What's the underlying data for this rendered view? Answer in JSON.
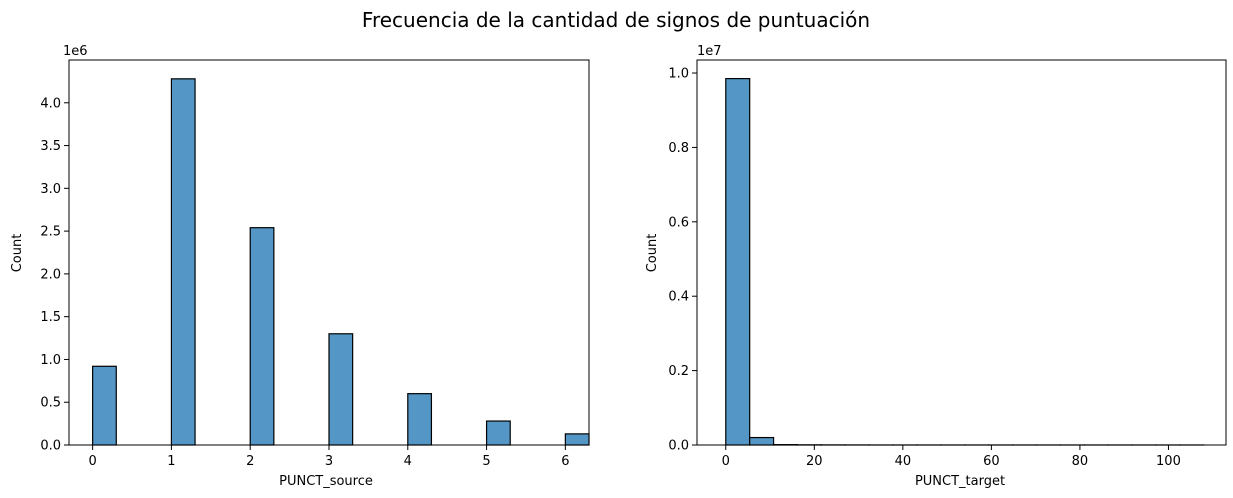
{
  "figure": {
    "title": "Frecuencia de la cantidad de signos de puntuación"
  },
  "chart_data": [
    {
      "type": "bar",
      "title": "",
      "xlabel": "PUNCT_source",
      "ylabel": "Count",
      "offset_text": "1e6",
      "color": "#5497c6",
      "xlim": [
        -0.3,
        6.3
      ],
      "ylim": [
        0,
        4.5
      ],
      "x_ticks": [
        0,
        1,
        2,
        3,
        4,
        5,
        6
      ],
      "x_tick_labels": [
        "0",
        "1",
        "2",
        "3",
        "4",
        "5",
        "6"
      ],
      "y_ticks": [
        0,
        0.5,
        1.0,
        1.5,
        2.0,
        2.5,
        3.0,
        3.5,
        4.0
      ],
      "y_tick_labels": [
        "0.0",
        "0.5",
        "1.0",
        "1.5",
        "2.0",
        "2.5",
        "3.0",
        "3.5",
        "4.0"
      ],
      "bin_width": 0.3,
      "bars": [
        {
          "x": 0,
          "value": 0.92
        },
        {
          "x": 1,
          "value": 4.28
        },
        {
          "x": 2,
          "value": 2.54
        },
        {
          "x": 3,
          "value": 1.3
        },
        {
          "x": 4,
          "value": 0.6
        },
        {
          "x": 5,
          "value": 0.28
        },
        {
          "x": 6,
          "value": 0.13
        }
      ],
      "grid": false
    },
    {
      "type": "bar",
      "title": "",
      "xlabel": "PUNCT_target",
      "ylabel": "Count",
      "offset_text": "1e7",
      "color": "#5497c6",
      "xlim": [
        -6.5,
        113
      ],
      "ylim": [
        0,
        1.035
      ],
      "x_ticks": [
        0,
        20,
        40,
        60,
        80,
        100
      ],
      "x_tick_labels": [
        "0",
        "20",
        "40",
        "60",
        "80",
        "100"
      ],
      "y_ticks": [
        0,
        0.2,
        0.4,
        0.6,
        0.8,
        1.0
      ],
      "y_tick_labels": [
        "0.0",
        "0.2",
        "0.4",
        "0.6",
        "0.8",
        "1.0"
      ],
      "bin_width": 5.4,
      "bars": [
        {
          "x": 0,
          "value": 0.985
        },
        {
          "x": 5.4,
          "value": 0.02
        },
        {
          "x": 10.8,
          "value": 0.001
        },
        {
          "x": 16.2,
          "value": 0.0005
        },
        {
          "x": 21.6,
          "value": 0.0003
        },
        {
          "x": 27.0,
          "value": 0.0002
        },
        {
          "x": 32.4,
          "value": 0.0001
        },
        {
          "x": 37.8,
          "value": 0.0001
        },
        {
          "x": 43.2,
          "value": 0.0001
        },
        {
          "x": 48.6,
          "value": 0.0001
        },
        {
          "x": 54.0,
          "value": 0.0001
        },
        {
          "x": 59.4,
          "value": 0.0001
        },
        {
          "x": 64.8,
          "value": 0.0001
        },
        {
          "x": 70.2,
          "value": 0.0001
        },
        {
          "x": 75.6,
          "value": 0.0001
        },
        {
          "x": 81.0,
          "value": 0.0001
        },
        {
          "x": 86.4,
          "value": 0.0001
        },
        {
          "x": 91.8,
          "value": 0.0001
        },
        {
          "x": 97.2,
          "value": 0.0001
        },
        {
          "x": 102.6,
          "value": 0.0001
        }
      ],
      "grid": false
    }
  ]
}
